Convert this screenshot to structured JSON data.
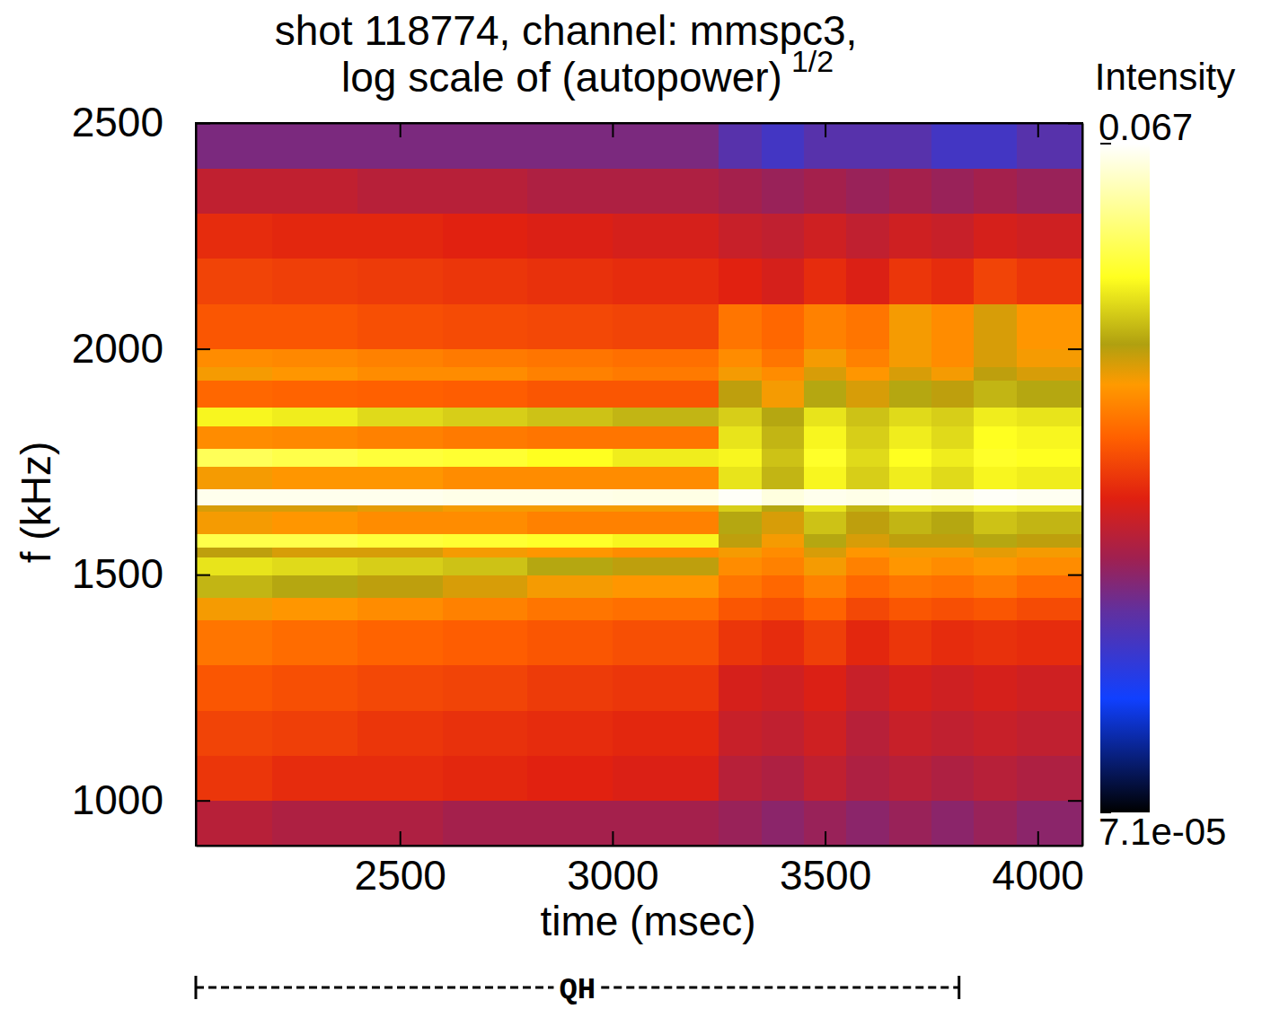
{
  "chart_data": {
    "type": "heatmap",
    "title": "shot 118774, channel: mmspc3,",
    "subtitle": {
      "text": "log scale of (autopower)",
      "superscript": "1/2"
    },
    "x_label": "time (msec)",
    "y_label": "f (kHz)",
    "xlim": [
      2020,
      4105
    ],
    "ylim": [
      900,
      2500
    ],
    "xticks": [
      2500,
      3000,
      3500,
      4000
    ],
    "yticks": [
      1000,
      1500,
      2000,
      2500
    ],
    "x_edges": [
      2020,
      2200,
      2400,
      2600,
      2800,
      3000,
      3250,
      3350,
      3450,
      3550,
      3650,
      3750,
      3850,
      3950,
      4105
    ],
    "y_edges": [
      900,
      1000,
      1100,
      1200,
      1300,
      1400,
      1450,
      1500,
      1540,
      1560,
      1590,
      1640,
      1655,
      1690,
      1740,
      1780,
      1830,
      1870,
      1930,
      1960,
      2000,
      2100,
      2200,
      2300,
      2400,
      2500
    ],
    "cells": [
      [
        0.0012,
        0.0011,
        0.0011,
        0.001,
        0.001,
        0.001,
        0.0009,
        0.0008,
        0.0009,
        0.0008,
        0.0009,
        0.0008,
        0.0009,
        0.0008
      ],
      [
        0.0022,
        0.002,
        0.002,
        0.0019,
        0.0018,
        0.0017,
        0.0012,
        0.0011,
        0.0013,
        0.0011,
        0.0012,
        0.0011,
        0.0012,
        0.0011
      ],
      [
        0.0025,
        0.0024,
        0.0022,
        0.0021,
        0.002,
        0.0019,
        0.0014,
        0.0013,
        0.0015,
        0.0012,
        0.0014,
        0.0013,
        0.0014,
        0.0013
      ],
      [
        0.003,
        0.0028,
        0.0026,
        0.0025,
        0.0023,
        0.0022,
        0.0016,
        0.0015,
        0.0017,
        0.0014,
        0.0016,
        0.0015,
        0.0016,
        0.0015
      ],
      [
        0.004,
        0.0037,
        0.0034,
        0.0032,
        0.003,
        0.0028,
        0.0022,
        0.002,
        0.0024,
        0.0019,
        0.0022,
        0.002,
        0.0021,
        0.002
      ],
      [
        0.006,
        0.0055,
        0.005,
        0.0045,
        0.004,
        0.0038,
        0.003,
        0.0028,
        0.0034,
        0.0026,
        0.003,
        0.0028,
        0.003,
        0.0027
      ],
      [
        0.01,
        0.009,
        0.008,
        0.007,
        0.006,
        0.0055,
        0.004,
        0.0035,
        0.0045,
        0.0035,
        0.004,
        0.0038,
        0.0042,
        0.0036
      ],
      [
        0.014,
        0.013,
        0.012,
        0.011,
        0.009,
        0.008,
        0.005,
        0.0045,
        0.006,
        0.0045,
        0.0055,
        0.005,
        0.0055,
        0.005
      ],
      [
        0.008,
        0.007,
        0.007,
        0.006,
        0.0055,
        0.005,
        0.006,
        0.005,
        0.007,
        0.0055,
        0.006,
        0.006,
        0.0065,
        0.006
      ],
      [
        0.022,
        0.022,
        0.02,
        0.019,
        0.018,
        0.016,
        0.008,
        0.006,
        0.009,
        0.007,
        0.008,
        0.008,
        0.009,
        0.008
      ],
      [
        0.006,
        0.0055,
        0.005,
        0.005,
        0.0045,
        0.0045,
        0.009,
        0.007,
        0.011,
        0.008,
        0.01,
        0.009,
        0.011,
        0.01
      ],
      [
        0.007,
        0.007,
        0.0065,
        0.006,
        0.006,
        0.006,
        0.012,
        0.009,
        0.014,
        0.01,
        0.013,
        0.012,
        0.014,
        0.013
      ],
      [
        0.06,
        0.06,
        0.06,
        0.058,
        0.058,
        0.057,
        0.064,
        0.055,
        0.06,
        0.058,
        0.062,
        0.06,
        0.064,
        0.062
      ],
      [
        0.006,
        0.0055,
        0.0055,
        0.005,
        0.005,
        0.005,
        0.014,
        0.01,
        0.016,
        0.012,
        0.015,
        0.013,
        0.016,
        0.015
      ],
      [
        0.024,
        0.022,
        0.02,
        0.019,
        0.017,
        0.015,
        0.016,
        0.011,
        0.018,
        0.013,
        0.017,
        0.015,
        0.018,
        0.017
      ],
      [
        0.005,
        0.0048,
        0.0045,
        0.0042,
        0.004,
        0.004,
        0.014,
        0.01,
        0.016,
        0.012,
        0.015,
        0.013,
        0.017,
        0.016
      ],
      [
        0.016,
        0.015,
        0.013,
        0.012,
        0.011,
        0.01,
        0.012,
        0.009,
        0.014,
        0.011,
        0.013,
        0.012,
        0.015,
        0.014
      ],
      [
        0.0035,
        0.0034,
        0.0033,
        0.0032,
        0.003,
        0.003,
        0.008,
        0.006,
        0.009,
        0.007,
        0.009,
        0.008,
        0.01,
        0.009
      ],
      [
        0.006,
        0.0055,
        0.005,
        0.005,
        0.0045,
        0.0042,
        0.006,
        0.005,
        0.007,
        0.0055,
        0.007,
        0.006,
        0.008,
        0.007
      ],
      [
        0.005,
        0.0048,
        0.0045,
        0.0042,
        0.004,
        0.0038,
        0.005,
        0.004,
        0.006,
        0.0045,
        0.006,
        0.005,
        0.007,
        0.006
      ],
      [
        0.003,
        0.003,
        0.0028,
        0.0027,
        0.0026,
        0.0025,
        0.004,
        0.0035,
        0.0045,
        0.004,
        0.006,
        0.005,
        0.007,
        0.0055
      ],
      [
        0.0025,
        0.0024,
        0.0023,
        0.0022,
        0.0021,
        0.002,
        0.0018,
        0.0016,
        0.002,
        0.0017,
        0.0022,
        0.002,
        0.0025,
        0.0022
      ],
      [
        0.002,
        0.0019,
        0.0019,
        0.0018,
        0.0017,
        0.0016,
        0.0014,
        0.0013,
        0.0015,
        0.0013,
        0.0015,
        0.0014,
        0.0016,
        0.0015
      ],
      [
        0.0013,
        0.0013,
        0.0012,
        0.0012,
        0.0011,
        0.0011,
        0.001,
        0.0009,
        0.001,
        0.0009,
        0.001,
        0.0009,
        0.001,
        0.0009
      ],
      [
        0.0007,
        0.0007,
        0.0007,
        0.0007,
        0.0007,
        0.0007,
        0.0005,
        0.0004,
        0.0005,
        0.0005,
        0.0005,
        0.0004,
        0.0004,
        0.0005
      ]
    ],
    "colorbar": {
      "title": "Intensity",
      "log": true,
      "range": [
        7.1e-05,
        0.067
      ],
      "ticks": [
        {
          "value": 7.1e-05,
          "label": "7.1e-05"
        },
        0.067
      ]
    },
    "annotations": [
      {
        "text": "QH",
        "x": [
          2020,
          3815
        ]
      }
    ]
  }
}
